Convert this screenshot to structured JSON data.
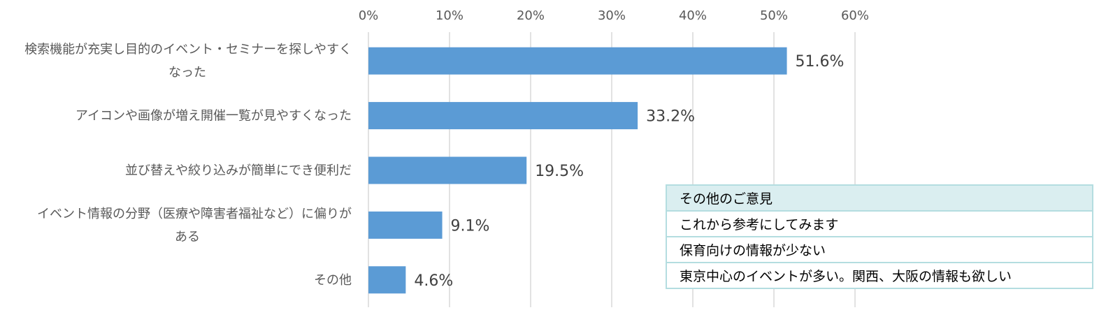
{
  "chart_data": {
    "type": "bar",
    "orientation": "horizontal",
    "categories": [
      [
        "検索機能が充実し目的のイベント・セミナーを探しやすく",
        "なった"
      ],
      [
        "アイコンや画像が増え開催一覧が見やすくなった"
      ],
      [
        "並び替えや絞り込みが簡単にでき便利だ"
      ],
      [
        "イベント情報の分野（医療や障害者福祉など）に偏りが",
        "ある"
      ],
      [
        "その他"
      ]
    ],
    "values": [
      51.6,
      33.2,
      19.5,
      9.1,
      4.6
    ],
    "data_labels": [
      "51.6%",
      "33.2%",
      "19.5%",
      "9.1%",
      "4.6%"
    ],
    "xlim": [
      0,
      60
    ],
    "xticks": [
      0,
      10,
      20,
      30,
      40,
      50,
      60
    ],
    "xtick_labels": [
      "0%",
      "10%",
      "20%",
      "30%",
      "40%",
      "50%",
      "60%"
    ],
    "x_axis_position": "top",
    "grid": true,
    "bar_color": "#5b9bd5"
  },
  "opinion_table": {
    "header": "その他のご意見",
    "rows": [
      "これから参考にしてみます",
      "保育向けの情報が少ない",
      "東京中心のイベントが多い。関西、大阪の情報も欲しい"
    ]
  }
}
